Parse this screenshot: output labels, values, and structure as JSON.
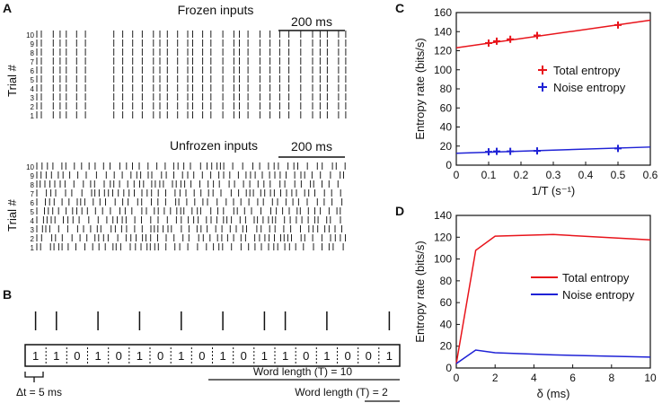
{
  "panels": {
    "a": {
      "letter": "A",
      "frozen_title": "Frozen inputs",
      "unfrozen_title": "Unfrozen inputs",
      "scalebar": "200 ms",
      "ylabel": "Trial #",
      "trials": [
        "10",
        "9",
        "8",
        "7",
        "6",
        "5",
        "4",
        "3",
        "2",
        "1"
      ]
    },
    "b": {
      "letter": "B",
      "bits": [
        "1",
        "1",
        "0",
        "1",
        "0",
        "1",
        "0",
        "1",
        "0",
        "1",
        "0",
        "1",
        "1",
        "0",
        "1",
        "0",
        "0",
        "1"
      ],
      "dt_label": "Δt = 5 ms",
      "word10": "Word length (T) = 10",
      "word2": "Word length (T) = 2"
    },
    "c": {
      "letter": "C"
    },
    "d": {
      "letter": "D"
    }
  },
  "chart_data": [
    {
      "panel": "C",
      "type": "scatter",
      "xlabel": "1/T (s⁻¹)",
      "ylabel": "Entropy rate (bits/s)",
      "xlim": [
        0,
        0.6
      ],
      "ylim": [
        0,
        160
      ],
      "xticks": [
        "0",
        "0.1",
        "0.2",
        "0.3",
        "0.4",
        "0.5",
        "0.6"
      ],
      "yticks": [
        "0",
        "20",
        "40",
        "60",
        "80",
        "100",
        "120",
        "140",
        "160"
      ],
      "series": [
        {
          "name": "Total entropy",
          "color": "#e8141b",
          "x": [
            0.1,
            0.125,
            0.167,
            0.25,
            0.5
          ],
          "y": [
            128,
            130,
            132,
            136,
            147
          ],
          "fit": [
            [
              0,
              123
            ],
            [
              0.6,
              152
            ]
          ]
        },
        {
          "name": "Noise entropy",
          "color": "#1f22d6",
          "x": [
            0.1,
            0.125,
            0.167,
            0.25,
            0.5
          ],
          "y": [
            14,
            14.5,
            14.5,
            15,
            17.5
          ],
          "fit": [
            [
              0,
              12.5
            ],
            [
              0.6,
              19
            ]
          ]
        }
      ]
    },
    {
      "panel": "D",
      "type": "line",
      "xlabel": "δ (ms)",
      "ylabel": "Entropy rate (bits/s)",
      "xlim": [
        0,
        10
      ],
      "ylim": [
        0,
        140
      ],
      "xticks": [
        "0",
        "2",
        "4",
        "6",
        "8",
        "10"
      ],
      "yticks": [
        "0",
        "20",
        "40",
        "60",
        "80",
        "100",
        "120",
        "140"
      ],
      "series": [
        {
          "name": "Total entropy",
          "color": "#e8141b",
          "x": [
            0,
            1,
            2,
            5,
            10
          ],
          "y": [
            4,
            108,
            121,
            122.5,
            117.5
          ]
        },
        {
          "name": "Noise entropy",
          "color": "#1f22d6",
          "x": [
            0,
            1,
            2,
            5,
            10
          ],
          "y": [
            4,
            16.5,
            14,
            12,
            10
          ]
        }
      ]
    }
  ]
}
